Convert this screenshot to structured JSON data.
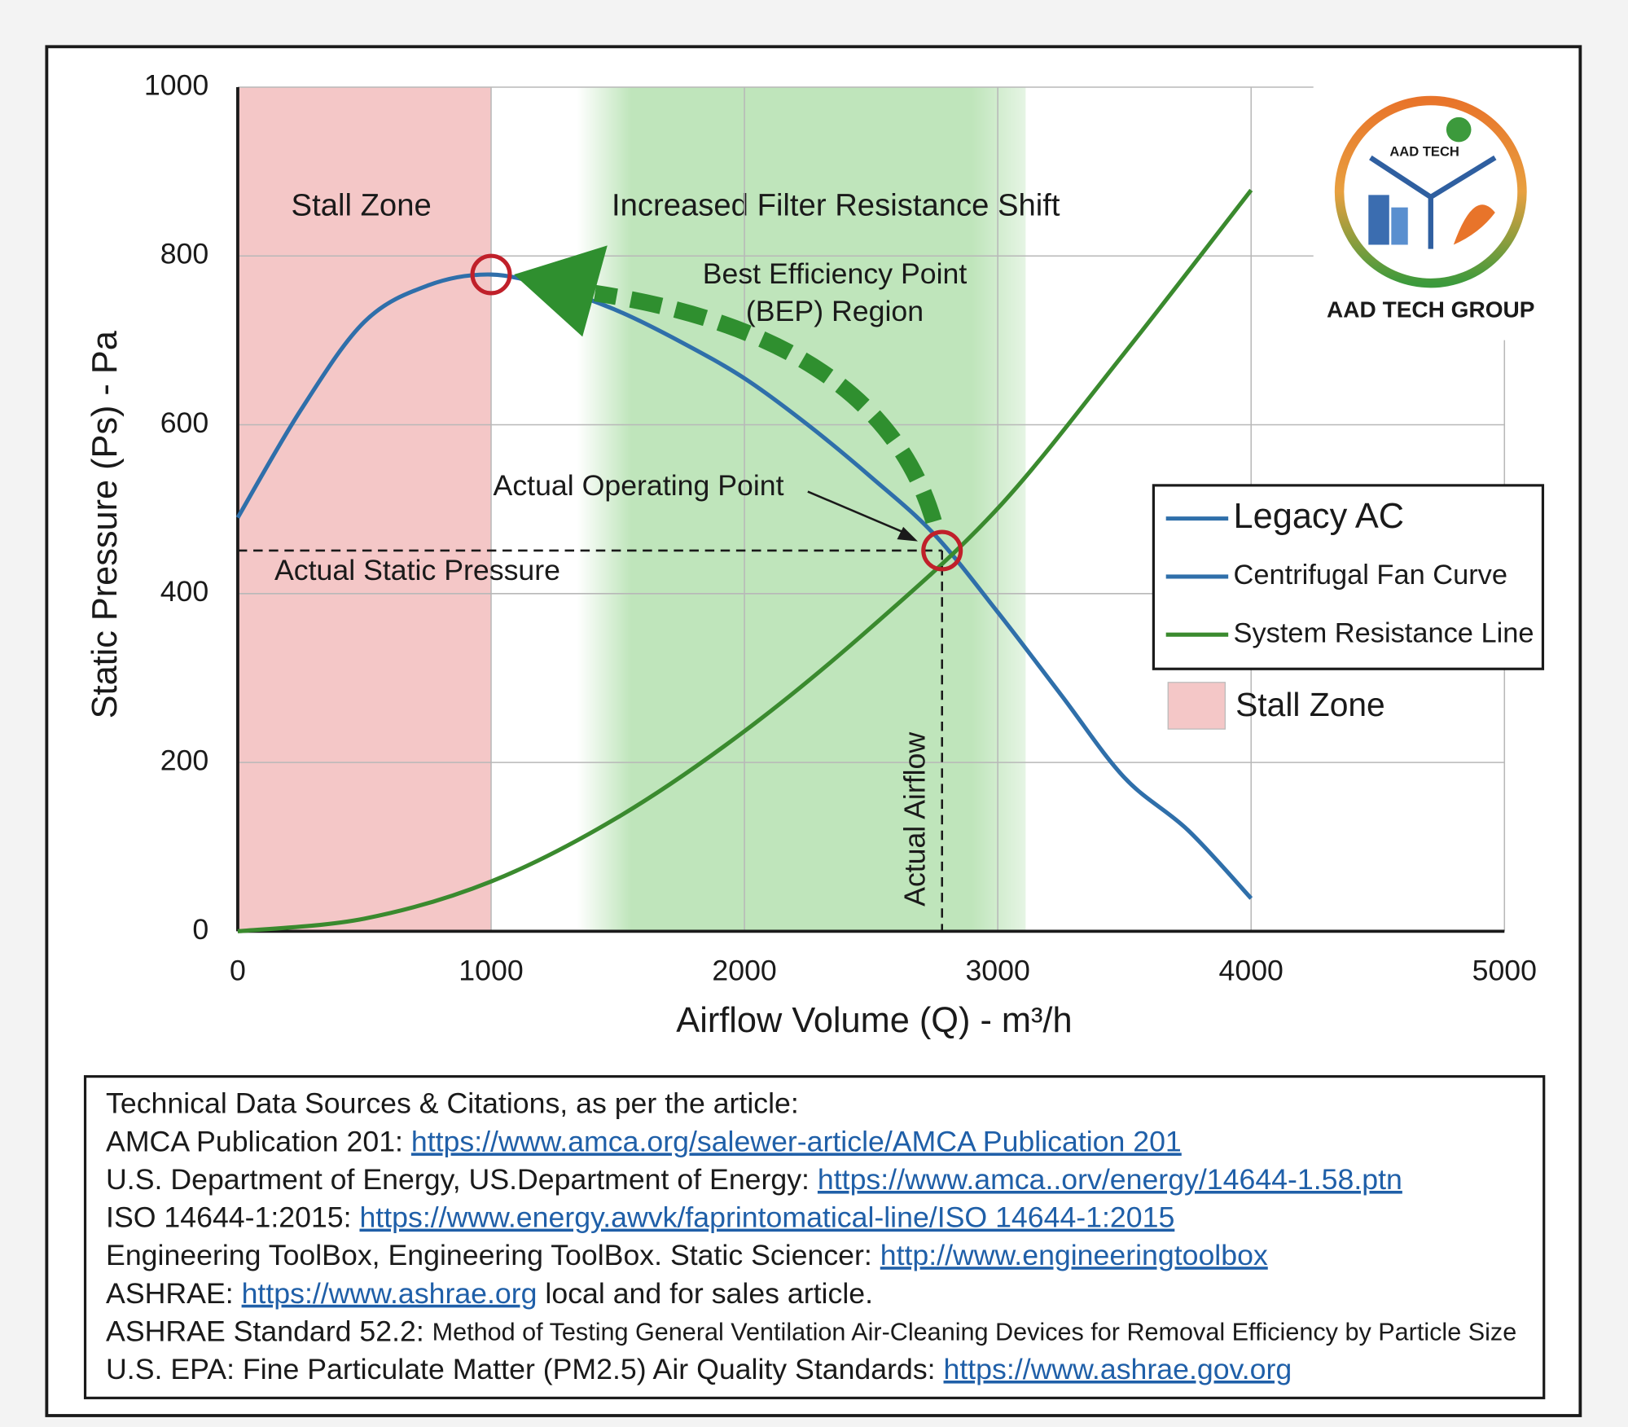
{
  "chart_data": {
    "type": "line",
    "xlabel": "Airflow Volume (Q) - m³/h",
    "ylabel": "Static Pressure (Ps) - Pa",
    "xlim": [
      0,
      5000
    ],
    "xticks": [
      0,
      1000,
      2000,
      3000,
      4000,
      5000
    ],
    "ylim": [
      0,
      1000
    ],
    "yticks": [
      0,
      200,
      400,
      600,
      800,
      1000
    ],
    "grid": true,
    "series": [
      {
        "name": "Centrifugal Fan Curve",
        "color": "#2f6faa",
        "x": [
          0,
          250,
          500,
          750,
          1000,
          1250,
          1500,
          1750,
          2000,
          2250,
          2500,
          2750,
          3000,
          3250,
          3500,
          3750,
          4000
        ],
        "values": [
          490,
          618,
          722,
          765,
          778,
          762,
          735,
          698,
          655,
          600,
          538,
          470,
          378,
          280,
          182,
          120,
          39
        ]
      },
      {
        "name": "System Resistance Line",
        "color": "#3a8a2e",
        "x": [
          0,
          500,
          1000,
          1500,
          2000,
          2500,
          3000,
          3500,
          4000
        ],
        "values": [
          0,
          15,
          59,
          135,
          237,
          360,
          501,
          685,
          878
        ]
      }
    ],
    "legend_heading": {
      "label": "Legacy AC",
      "color": "#2f6faa"
    },
    "zones": [
      {
        "label": "Stall Zone",
        "x": [
          0,
          1000
        ],
        "color": "#f4c7c7"
      },
      {
        "label": "Increased Filter Resistance Shift",
        "x": [
          1340,
          3110
        ],
        "color": "#bfe5bb"
      }
    ],
    "stall_point": {
      "x": 1000,
      "y": 778
    },
    "operating_point": {
      "x": 2780,
      "y": 451
    },
    "annotations": {
      "bep": [
        "Best Efficiency Point",
        "(BEP) Region"
      ],
      "operating_point": "Actual Operating Point",
      "static_pressure": "Actual Static Pressure",
      "airflow": "Actual Airflow"
    }
  },
  "logo": {
    "badge": "AAD TECH",
    "name": "AAD TECH GROUP"
  },
  "citations": {
    "title": "Technical Data Sources & Citations, as per the article:",
    "items": [
      [
        {
          "text": "AMCA Publication 201: "
        },
        {
          "link": "https://www.amca.org/salewer-article/AMCA Publication 201"
        }
      ],
      [
        {
          "text": "U.S. Department of Energy, US.Department of Energy: "
        },
        {
          "link": "https://www.amca..orv/energy/14644-1.58.ptn"
        }
      ],
      [
        {
          "text": "ISO 14644-1:2015: "
        },
        {
          "link": "https://www.energy.awvk/faprintomatical-line/ISO 14644-1:2015"
        }
      ],
      [
        {
          "text": "Engineering ToolBox, Engineering ToolBox. Static Sciencer: "
        },
        {
          "link": "http://www.engineeringtoolbox"
        }
      ],
      [
        {
          "text": "ASHRAE: "
        },
        {
          "link": "https://www.ashrae.org"
        },
        {
          "text": " local and for sales article."
        }
      ],
      [
        {
          "text": "ASHRAE Standard 52.2: "
        },
        {
          "small": "Method of Testing General Ventilation Air-Cleaning Devices for Removal Efficiency by Particle Size"
        }
      ],
      [
        {
          "text": "U.S. EPA: "
        },
        {
          "text": "Fine Particulate Matter (PM2.5) Air Quality Standards: "
        },
        {
          "link": "https://www.ashrae.gov.org"
        }
      ]
    ]
  }
}
